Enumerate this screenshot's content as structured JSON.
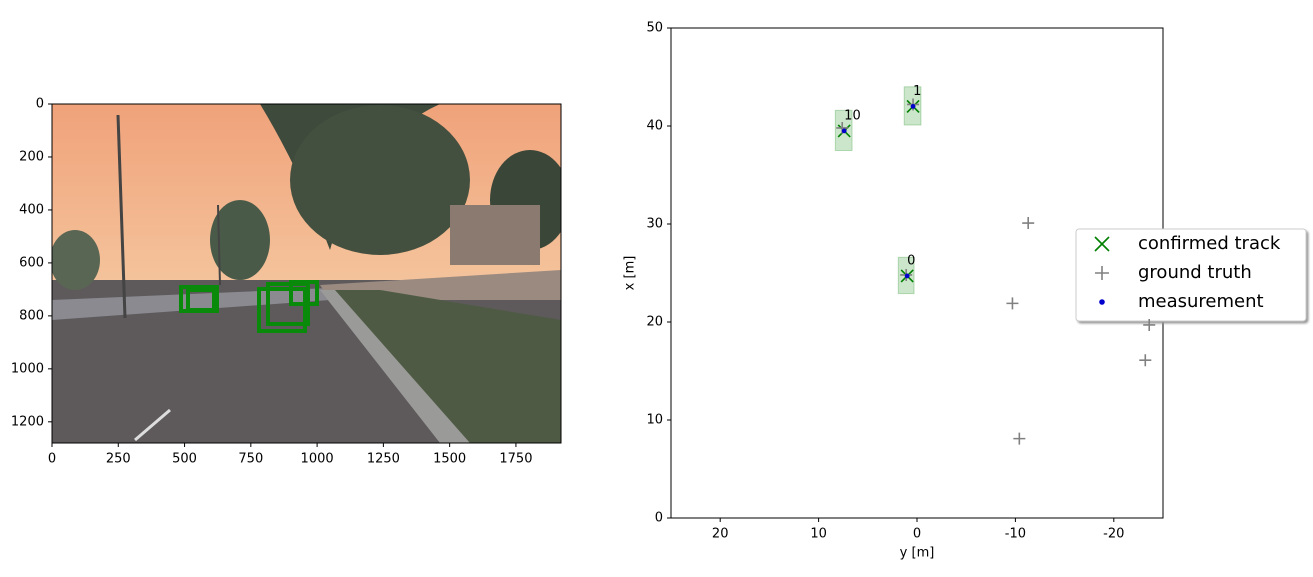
{
  "chart_data": [
    {
      "type": "image",
      "xlim": [
        0,
        1920
      ],
      "ylim": [
        1280,
        0
      ],
      "xticks": [
        0,
        250,
        500,
        750,
        1000,
        1250,
        1500,
        1750
      ],
      "yticks": [
        0,
        200,
        400,
        600,
        800,
        1000,
        1200
      ]
    },
    {
      "type": "scatter",
      "xlabel": "y [m]",
      "ylabel": "x [m]",
      "xlim": [
        25,
        -25
      ],
      "ylim": [
        0,
        50
      ],
      "xticks": [
        20,
        10,
        0,
        -10,
        -20
      ],
      "yticks": [
        0,
        10,
        20,
        30,
        40,
        50
      ],
      "legend": "right outside",
      "series": [
        {
          "name": "confirmed track",
          "color": "#008000",
          "marker": "x",
          "x": [
            7.4,
            0.4,
            1.0
          ],
          "values": [
            39.5,
            42.0,
            24.7
          ],
          "labels": [
            "10",
            "1",
            "0"
          ],
          "box_x": [
            [
              8.3,
              6.6
            ],
            [
              1.3,
              -0.4
            ],
            [
              1.9,
              0.3
            ]
          ],
          "box_y": [
            [
              41.6,
              37.5
            ],
            [
              44.0,
              40.1
            ],
            [
              26.6,
              22.9
            ]
          ]
        },
        {
          "name": "ground truth",
          "color": "#808080",
          "marker": "+",
          "x": [
            7.6,
            0.4,
            1.1,
            -11.3,
            -9.7,
            -10.4,
            -23.6,
            -23.2
          ],
          "values": [
            39.8,
            42.2,
            24.8,
            30.1,
            21.9,
            8.1,
            19.7,
            16.1
          ]
        },
        {
          "name": "measurement",
          "color": "#0000cc",
          "marker": "dot",
          "x": [
            7.4,
            0.4,
            1.0
          ],
          "values": [
            39.5,
            42.0,
            24.7
          ]
        }
      ]
    }
  ]
}
